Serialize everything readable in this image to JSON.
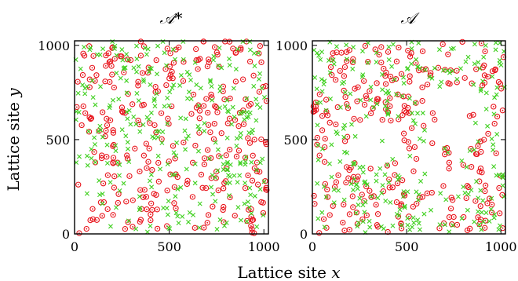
{
  "figure": {
    "xlabel_text": "Lattice site ",
    "xlabel_var": "x",
    "ylabel_text": "Lattice site ",
    "ylabel_var": "y"
  },
  "chart_data": [
    {
      "type": "scatter",
      "title": "𝒜*",
      "xlim": [
        0,
        1024
      ],
      "ylim": [
        0,
        1024
      ],
      "xticks": [
        0,
        500,
        1000
      ],
      "yticks": [
        0,
        500,
        1000
      ],
      "grid": false,
      "legend": "none",
      "series": [
        {
          "marker": "circle",
          "color": "#e8141c",
          "count_approx": 300,
          "distribution": "near-uniform, stratified in horizontal bands"
        },
        {
          "marker": "cross",
          "color": "#3fd01f",
          "count_approx": 300,
          "distribution": "near-uniform, stratified in horizontal bands"
        }
      ]
    },
    {
      "type": "scatter",
      "title": "𝒜",
      "xlim": [
        0,
        1024
      ],
      "ylim": [
        0,
        1024
      ],
      "xticks": [
        0,
        500,
        1000
      ],
      "yticks": [
        0,
        500,
        1000
      ],
      "grid": false,
      "legend": "none",
      "series": [
        {
          "marker": "circle",
          "color": "#e8141c",
          "count_approx": 280,
          "distribution": "clustered, with empty regions near the center-right"
        },
        {
          "marker": "cross",
          "color": "#3fd01f",
          "count_approx": 280,
          "distribution": "clustered, with empty regions near the center-right"
        }
      ]
    }
  ]
}
